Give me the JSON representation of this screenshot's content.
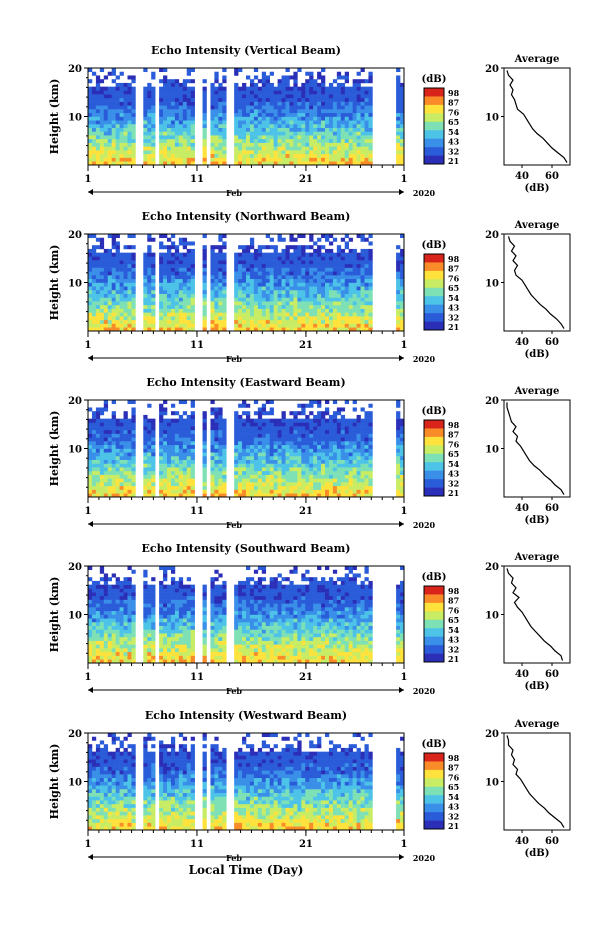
{
  "chart_data": [
    {
      "type": "heatmap",
      "title": "Echo Intensity (Vertical Beam)",
      "ylabel": "Height (km)",
      "ylim": [
        0,
        20
      ],
      "yticks": [
        "10",
        "20"
      ],
      "xticks": [
        "1",
        "11",
        "21",
        "1"
      ],
      "month_label": "Feb",
      "year_label": "2020",
      "colorbar": {
        "unit": "(dB)",
        "levels": [
          "98",
          "87",
          "76",
          "65",
          "54",
          "43",
          "32",
          "21"
        ]
      },
      "average": {
        "title": "Average",
        "xlabel": "(dB)",
        "xticks": [
          "40",
          "60"
        ],
        "yticks": [
          "10",
          "20"
        ],
        "profile": [
          [
            70,
            0.5
          ],
          [
            68,
            1.5
          ],
          [
            64,
            2.5
          ],
          [
            60,
            3.5
          ],
          [
            57,
            4.5
          ],
          [
            54,
            5.5
          ],
          [
            50,
            6.5
          ],
          [
            47,
            7.5
          ],
          [
            45,
            8.5
          ],
          [
            43,
            9.5
          ],
          [
            41,
            10.5
          ],
          [
            37,
            11.5
          ],
          [
            36,
            12.5
          ],
          [
            35,
            13.5
          ],
          [
            33,
            14.5
          ],
          [
            34,
            15.5
          ],
          [
            32,
            16.5
          ],
          [
            34,
            17.5
          ],
          [
            31,
            18.5
          ],
          [
            30,
            19.5
          ]
        ]
      }
    },
    {
      "type": "heatmap",
      "title": "Echo Intensity (Northward Beam)",
      "ylabel": "Height (km)",
      "ylim": [
        0,
        20
      ],
      "yticks": [
        "10",
        "20"
      ],
      "xticks": [
        "1",
        "11",
        "21",
        "1"
      ],
      "month_label": "Feb",
      "year_label": "2020",
      "colorbar": {
        "unit": "(dB)",
        "levels": [
          "98",
          "87",
          "76",
          "65",
          "54",
          "43",
          "32",
          "21"
        ]
      },
      "average": {
        "title": "Average",
        "xlabel": "(dB)",
        "xticks": [
          "40",
          "60"
        ],
        "yticks": [
          "10",
          "20"
        ],
        "profile": [
          [
            68,
            0.5
          ],
          [
            66,
            1.5
          ],
          [
            63,
            2.5
          ],
          [
            59,
            3.5
          ],
          [
            56,
            4.5
          ],
          [
            52,
            5.5
          ],
          [
            49,
            6.5
          ],
          [
            46,
            7.5
          ],
          [
            44,
            8.5
          ],
          [
            42,
            9.5
          ],
          [
            40,
            10.5
          ],
          [
            36,
            11.5
          ],
          [
            35,
            12.5
          ],
          [
            37,
            13.5
          ],
          [
            34,
            14.5
          ],
          [
            36,
            15.5
          ],
          [
            33,
            16.5
          ],
          [
            35,
            17.5
          ],
          [
            32,
            18.5
          ],
          [
            31,
            19.5
          ]
        ]
      }
    },
    {
      "type": "heatmap",
      "title": "Echo Intensity (Eastward Beam)",
      "ylabel": "Height (km)",
      "ylim": [
        0,
        20
      ],
      "yticks": [
        "10",
        "20"
      ],
      "xticks": [
        "1",
        "11",
        "21",
        "1"
      ],
      "month_label": "Feb",
      "year_label": "2020",
      "colorbar": {
        "unit": "(dB)",
        "levels": [
          "98",
          "87",
          "76",
          "65",
          "54",
          "43",
          "32",
          "21"
        ]
      },
      "average": {
        "title": "Average",
        "xlabel": "(dB)",
        "xticks": [
          "40",
          "60"
        ],
        "yticks": [
          "10",
          "20"
        ],
        "profile": [
          [
            68,
            0.5
          ],
          [
            66,
            1.5
          ],
          [
            62,
            2.5
          ],
          [
            59,
            3.5
          ],
          [
            55,
            4.5
          ],
          [
            52,
            5.5
          ],
          [
            48,
            6.5
          ],
          [
            45,
            7.5
          ],
          [
            43,
            8.5
          ],
          [
            41,
            9.5
          ],
          [
            39,
            10.5
          ],
          [
            36,
            11.5
          ],
          [
            37,
            12.5
          ],
          [
            34,
            13.5
          ],
          [
            36,
            14.5
          ],
          [
            33,
            15.5
          ],
          [
            32,
            16.5
          ],
          [
            31,
            17.5
          ],
          [
            30,
            18.5
          ],
          [
            30,
            19.5
          ]
        ]
      }
    },
    {
      "type": "heatmap",
      "title": "Echo Intensity (Southward Beam)",
      "ylabel": "Height (km)",
      "ylim": [
        0,
        20
      ],
      "yticks": [
        "10",
        "20"
      ],
      "xticks": [
        "1",
        "11",
        "21",
        "1"
      ],
      "month_label": "Feb",
      "year_label": "2020",
      "colorbar": {
        "unit": "(dB)",
        "levels": [
          "98",
          "87",
          "76",
          "65",
          "54",
          "43",
          "32",
          "21"
        ]
      },
      "average": {
        "title": "Average",
        "xlabel": "(dB)",
        "xticks": [
          "40",
          "60"
        ],
        "yticks": [
          "10",
          "20"
        ],
        "profile": [
          [
            67,
            0.5
          ],
          [
            66,
            1.5
          ],
          [
            62,
            2.5
          ],
          [
            59,
            3.5
          ],
          [
            55,
            4.5
          ],
          [
            52,
            5.5
          ],
          [
            49,
            6.5
          ],
          [
            46,
            7.5
          ],
          [
            44,
            8.5
          ],
          [
            42,
            9.5
          ],
          [
            40,
            10.5
          ],
          [
            37,
            11.5
          ],
          [
            35,
            12.5
          ],
          [
            38,
            13.5
          ],
          [
            34,
            14.5
          ],
          [
            36,
            15.5
          ],
          [
            33,
            16.5
          ],
          [
            34,
            17.5
          ],
          [
            31,
            18.5
          ],
          [
            30,
            19.5
          ]
        ]
      }
    },
    {
      "type": "heatmap",
      "title": "Echo Intensity (Westward Beam)",
      "ylabel": "Height (km)",
      "xlabel": "Local Time (Day)",
      "ylim": [
        0,
        20
      ],
      "yticks": [
        "10",
        "20"
      ],
      "xticks": [
        "1",
        "11",
        "21",
        "1"
      ],
      "month_label": "Feb",
      "year_label": "2020",
      "colorbar": {
        "unit": "(dB)",
        "levels": [
          "98",
          "87",
          "76",
          "65",
          "54",
          "43",
          "32",
          "21"
        ]
      },
      "average": {
        "title": "Average",
        "xlabel": "(dB)",
        "xticks": [
          "40",
          "60"
        ],
        "yticks": [
          "10",
          "20"
        ],
        "profile": [
          [
            68,
            0.5
          ],
          [
            66,
            1.5
          ],
          [
            62,
            2.5
          ],
          [
            58,
            3.5
          ],
          [
            55,
            4.5
          ],
          [
            51,
            5.5
          ],
          [
            48,
            6.5
          ],
          [
            45,
            7.5
          ],
          [
            43,
            8.5
          ],
          [
            41,
            9.5
          ],
          [
            39,
            10.5
          ],
          [
            36,
            11.5
          ],
          [
            37,
            12.5
          ],
          [
            34,
            13.5
          ],
          [
            35,
            14.5
          ],
          [
            33,
            15.5
          ],
          [
            34,
            16.5
          ],
          [
            31,
            17.5
          ],
          [
            31,
            18.5
          ],
          [
            30,
            19.5
          ]
        ]
      }
    }
  ],
  "colors": {
    "scale": [
      "#2b2fb7",
      "#2a5cd9",
      "#3a8fe8",
      "#4dc3e8",
      "#7ee0b5",
      "#c8ec64",
      "#ffe23c",
      "#f98b28",
      "#d9241c"
    ],
    "background": "#ffffff",
    "ink": "#000000"
  }
}
